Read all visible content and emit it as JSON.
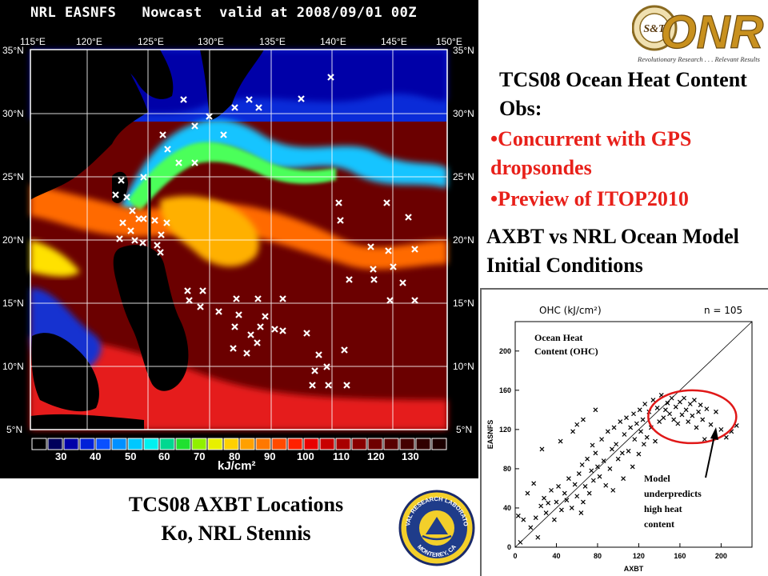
{
  "map": {
    "title": "NRL EASNFS   Nowcast  valid at 2008/09/01 00Z",
    "lon_labels": [
      "115°E",
      "120°E",
      "125°E",
      "130°E",
      "135°E",
      "140°E",
      "145°E",
      "150°E"
    ],
    "lat_labels": [
      "35°N",
      "30°N",
      "25°N",
      "20°N",
      "15°N",
      "10°N",
      "5°N"
    ],
    "colorbar_ticks": [
      "30",
      "40",
      "50",
      "60",
      "70",
      "80",
      "90",
      "100",
      "110",
      "120",
      "130"
    ],
    "colorbar_unit": "kJ/cm²"
  },
  "logo": {
    "name": "ONR",
    "tagline": "Revolutionary Research . . . Relevant Results",
    "seal_text": "S&T"
  },
  "headings": {
    "obs_title": "TCS08 Ocean Heat Content Obs:",
    "bullet_1": "•Concurrent with GPS dropsondes",
    "bullet_2": "•Preview of ITOP2010",
    "axbt_title": "AXBT vs NRL Ocean Model Initial Conditions"
  },
  "caption": {
    "line1": "TCS08 AXBT Locations",
    "line2": "Ko, NRL Stennis"
  },
  "navy_seal": {
    "top_text": "NAVAL RESEARCH LABORATORY",
    "bottom_text": "MONTEREY, CA"
  },
  "chart_data": {
    "type": "scatter",
    "title": "OHC (kJ/cm²)",
    "n_label": "n = 105",
    "xlabel": "AXBT",
    "ylabel": "EASNFS",
    "xlim": [
      0,
      230
    ],
    "ylim": [
      0,
      230
    ],
    "xticks": [
      0,
      40,
      80,
      120,
      160,
      200
    ],
    "yticks": [
      0,
      40,
      80,
      120,
      160,
      200
    ],
    "reference_line": "1:1",
    "annotations": {
      "ohc_note": "Ocean Heat Content (OHC)",
      "model_note": "Model underpredicts high heat content"
    },
    "points": [
      [
        5,
        5
      ],
      [
        3,
        32
      ],
      [
        8,
        28
      ],
      [
        15,
        20
      ],
      [
        20,
        30
      ],
      [
        22,
        10
      ],
      [
        25,
        42
      ],
      [
        28,
        50
      ],
      [
        30,
        35
      ],
      [
        32,
        45
      ],
      [
        35,
        58
      ],
      [
        38,
        28
      ],
      [
        40,
        46
      ],
      [
        42,
        62
      ],
      [
        45,
        38
      ],
      [
        48,
        55
      ],
      [
        50,
        48
      ],
      [
        52,
        70
      ],
      [
        55,
        40
      ],
      [
        58,
        64
      ],
      [
        60,
        52
      ],
      [
        62,
        75
      ],
      [
        64,
        35
      ],
      [
        65,
        84
      ],
      [
        66,
        46
      ],
      [
        68,
        62
      ],
      [
        70,
        90
      ],
      [
        72,
        55
      ],
      [
        74,
        78
      ],
      [
        75,
        104
      ],
      [
        76,
        68
      ],
      [
        78,
        96
      ],
      [
        80,
        82
      ],
      [
        82,
        72
      ],
      [
        84,
        110
      ],
      [
        86,
        88
      ],
      [
        88,
        63
      ],
      [
        90,
        118
      ],
      [
        92,
        80
      ],
      [
        94,
        100
      ],
      [
        95,
        58
      ],
      [
        96,
        122
      ],
      [
        98,
        105
      ],
      [
        100,
        90
      ],
      [
        102,
        128
      ],
      [
        104,
        96
      ],
      [
        105,
        70
      ],
      [
        106,
        115
      ],
      [
        108,
        132
      ],
      [
        110,
        98
      ],
      [
        112,
        122
      ],
      [
        114,
        82
      ],
      [
        115,
        136
      ],
      [
        116,
        110
      ],
      [
        118,
        126
      ],
      [
        120,
        95
      ],
      [
        121,
        140
      ],
      [
        122,
        118
      ],
      [
        124,
        130
      ],
      [
        125,
        105
      ],
      [
        126,
        146
      ],
      [
        128,
        112
      ],
      [
        130,
        138
      ],
      [
        132,
        122
      ],
      [
        134,
        150
      ],
      [
        136,
        108
      ],
      [
        138,
        142
      ],
      [
        140,
        128
      ],
      [
        142,
        155
      ],
      [
        144,
        132
      ],
      [
        146,
        140
      ],
      [
        148,
        147
      ],
      [
        150,
        136
      ],
      [
        152,
        152
      ],
      [
        154,
        130
      ],
      [
        156,
        143
      ],
      [
        158,
        126
      ],
      [
        160,
        148
      ],
      [
        162,
        135
      ],
      [
        164,
        152
      ],
      [
        166,
        140
      ],
      [
        168,
        128
      ],
      [
        170,
        146
      ],
      [
        172,
        134
      ],
      [
        174,
        150
      ],
      [
        176,
        122
      ],
      [
        178,
        138
      ],
      [
        180,
        145
      ],
      [
        182,
        130
      ],
      [
        184,
        110
      ],
      [
        186,
        141
      ],
      [
        190,
        125
      ],
      [
        195,
        138
      ],
      [
        200,
        120
      ],
      [
        205,
        112
      ],
      [
        210,
        118
      ],
      [
        215,
        124
      ],
      [
        12,
        55
      ],
      [
        18,
        65
      ],
      [
        26,
        100
      ],
      [
        44,
        108
      ],
      [
        56,
        118
      ],
      [
        60,
        125
      ],
      [
        66,
        130
      ],
      [
        78,
        140
      ]
    ]
  }
}
